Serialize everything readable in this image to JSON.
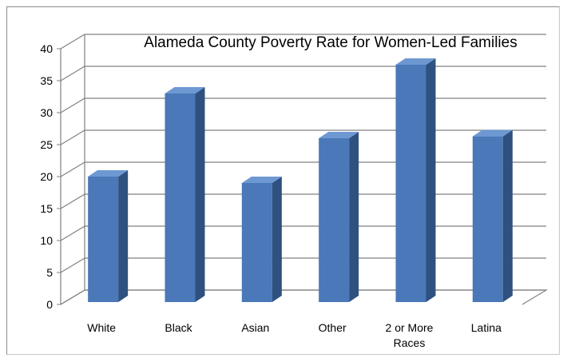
{
  "chart_data": {
    "type": "bar",
    "title": "Alameda County Poverty Rate for Women-Led Families",
    "categories": [
      [
        "White"
      ],
      [
        "Black"
      ],
      [
        "Asian"
      ],
      [
        "Other"
      ],
      [
        "2 or More",
        "Races"
      ],
      [
        "Latina"
      ]
    ],
    "values": [
      20,
      33,
      19,
      26,
      37.5,
      26.3
    ],
    "ylim": [
      0,
      40
    ],
    "yticks": [
      0,
      5,
      10,
      15,
      20,
      25,
      30,
      35,
      40
    ],
    "xlabel": "",
    "ylabel": "",
    "grid": true,
    "legend": "none",
    "colors": {
      "bar_front": "#4a78b8",
      "bar_side": "#2e5180",
      "bar_top": "#6e98d2",
      "grid": "#808080",
      "wall": "#ffffff"
    }
  }
}
